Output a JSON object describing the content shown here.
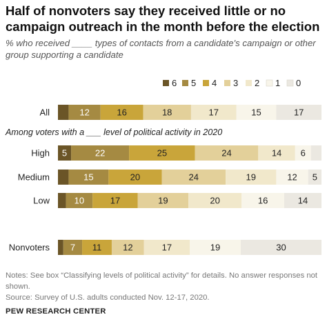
{
  "header": {
    "title": "Half of nonvoters say they received little or no campaign outreach in the month before the election",
    "subtitle": "% who received ____ types of contacts from a candidate's campaign or other group supporting a candidate"
  },
  "footer": {
    "notes": "Notes: See box “Classifying levels of political activity” for details. No answer responses not shown.",
    "source": "Source: Survey of U.S. adults conducted Nov. 12-17, 2020.",
    "org": "PEW RESEARCH CENTER"
  },
  "chart_data": {
    "type": "bar",
    "stacked": true,
    "orientation": "horizontal",
    "legend_position": "top-right",
    "categories": [
      "All",
      "High",
      "Medium",
      "Low",
      "Nonvoters"
    ],
    "group_label": "Among voters with a ___ level of political activity in 2020",
    "series": [
      {
        "name": "6",
        "color": "#6b5527",
        "values": [
          4,
          5,
          4,
          3,
          2
        ]
      },
      {
        "name": "5",
        "color": "#a58a42",
        "values": [
          12,
          22,
          15,
          10,
          7
        ]
      },
      {
        "name": "4",
        "color": "#c9a53a",
        "values": [
          16,
          25,
          20,
          17,
          11
        ]
      },
      {
        "name": "3",
        "color": "#e3d09a",
        "values": [
          18,
          24,
          24,
          19,
          12
        ]
      },
      {
        "name": "2",
        "color": "#f1e8cb",
        "values": [
          17,
          14,
          19,
          20,
          17
        ]
      },
      {
        "name": "1",
        "color": "#f8f5ea",
        "values": [
          15,
          6,
          12,
          16,
          19
        ]
      },
      {
        "name": "0",
        "color": "#ebe8e1",
        "values": [
          17,
          4,
          5,
          14,
          30
        ]
      }
    ],
    "labels": [
      [
        "",
        "12",
        "16",
        "18",
        "17",
        "15",
        "17"
      ],
      [
        "5",
        "22",
        "25",
        "24",
        "14",
        "6",
        ""
      ],
      [
        "",
        "15",
        "20",
        "24",
        "19",
        "12",
        "5"
      ],
      [
        "",
        "10",
        "17",
        "19",
        "20",
        "16",
        "14"
      ],
      [
        "",
        "7",
        "11",
        "12",
        "17",
        "19",
        "30"
      ]
    ]
  }
}
